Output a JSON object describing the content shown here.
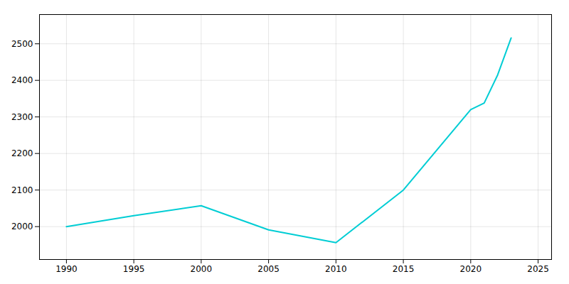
{
  "chart_data": {
    "type": "line",
    "x": [
      1990,
      1995,
      2000,
      2005,
      2010,
      2015,
      2020,
      2021,
      2022,
      2023
    ],
    "values": [
      2000,
      2030,
      2057,
      1991,
      1956,
      2100,
      2320,
      2338,
      2415,
      2516
    ],
    "color": "#00cdd4",
    "xlim": [
      1988,
      2026
    ],
    "ylim": [
      1910,
      2580
    ],
    "xticks": [
      1990,
      1995,
      2000,
      2005,
      2010,
      2015,
      2020,
      2025
    ],
    "yticks": [
      2000,
      2100,
      2200,
      2300,
      2400,
      2500
    ],
    "grid": true
  }
}
